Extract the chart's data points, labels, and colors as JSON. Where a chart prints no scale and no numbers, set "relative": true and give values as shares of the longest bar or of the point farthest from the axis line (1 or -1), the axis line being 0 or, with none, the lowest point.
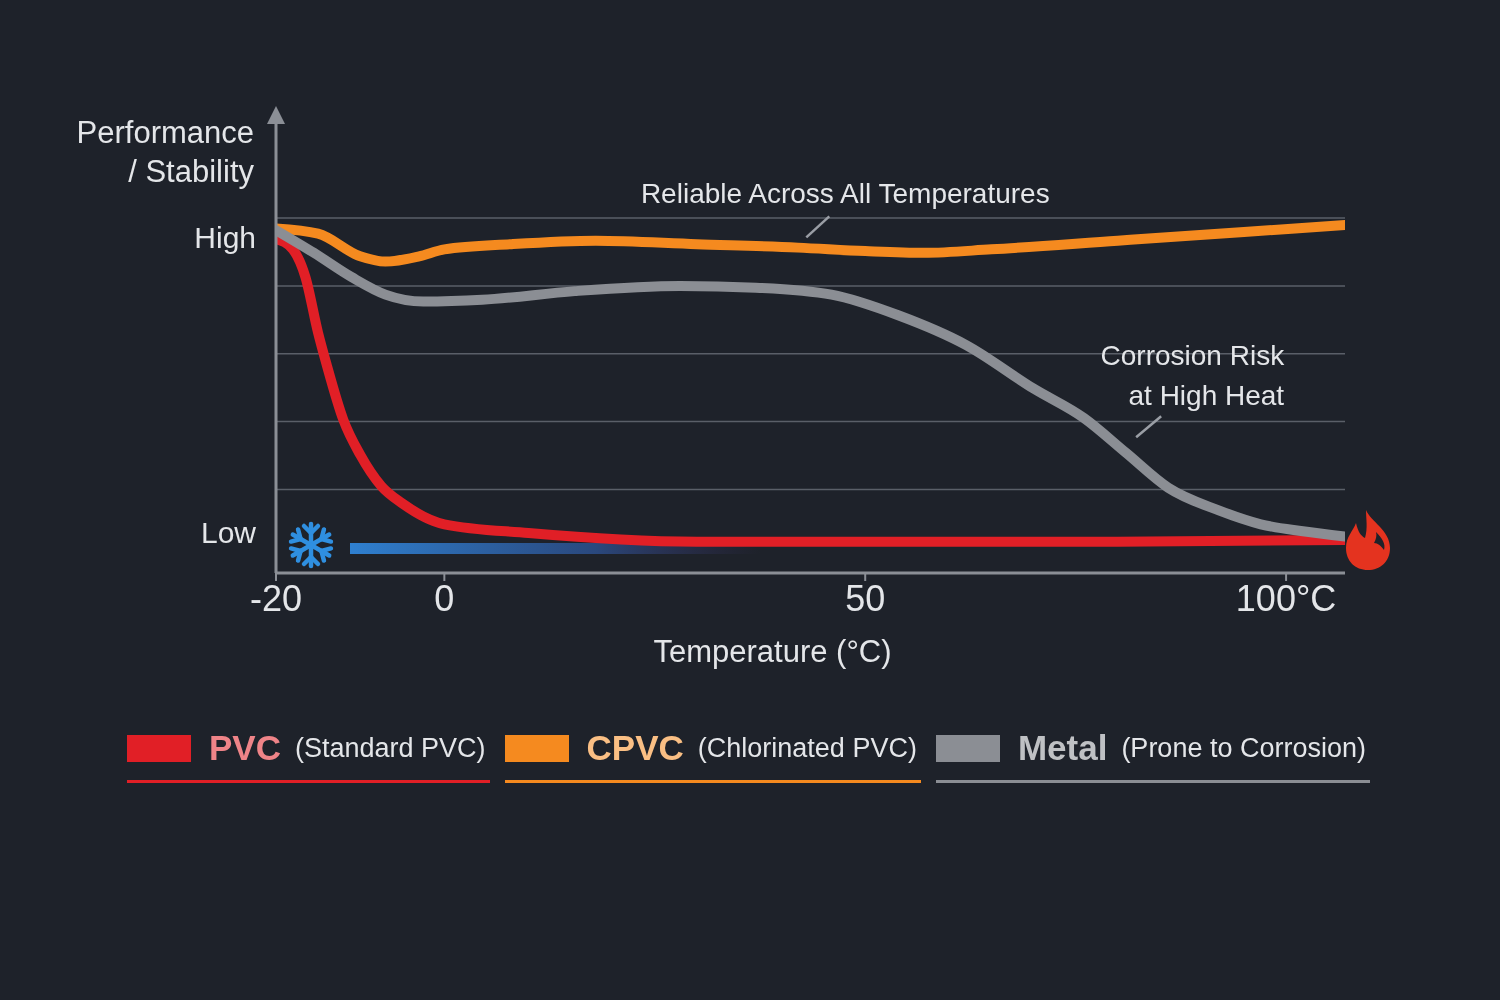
{
  "chart_data": {
    "type": "line",
    "xlabel": "Temperature (°C)",
    "ylabel": "Performance\n/ Stability",
    "relative": true,
    "xlim": [
      -20,
      107
    ],
    "xticks": [
      -20,
      0,
      50,
      {
        "value": 100,
        "label": "100°C"
      }
    ],
    "series": [
      {
        "name": "PVC (Standard PVC)",
        "color": "#e11f26",
        "x": [
          -20,
          -18,
          -16.5,
          -15,
          -14,
          -12,
          -10,
          -7.5,
          -5,
          0,
          10,
          30,
          50,
          80,
          107
        ],
        "values": [
          0.96,
          0.93,
          0.85,
          0.69,
          0.6,
          0.44,
          0.34,
          0.25,
          0.2,
          0.14,
          0.115,
          0.09,
          0.09,
          0.09,
          0.095
        ]
      },
      {
        "name": "CPVC (Chlorinated PVC)",
        "color": "#f58a1f",
        "x": [
          -20,
          -15,
          -10,
          -7,
          -3,
          0,
          8,
          18,
          30,
          42,
          50,
          57,
          65,
          80,
          95,
          107
        ],
        "values": [
          0.99,
          0.975,
          0.91,
          0.895,
          0.91,
          0.93,
          0.945,
          0.955,
          0.945,
          0.935,
          0.925,
          0.92,
          0.93,
          0.955,
          0.98,
          1.0
        ]
      },
      {
        "name": "Metal (Prone to Corrosion)",
        "color": "#8b8e94",
        "x": [
          -20,
          -15.5,
          -11,
          -7,
          -2.5,
          4.5,
          15.5,
          28,
          37,
          46,
          54,
          62,
          70,
          76,
          81,
          86,
          92,
          97,
          102,
          107
        ],
        "values": [
          0.985,
          0.92,
          0.85,
          0.8,
          0.78,
          0.785,
          0.81,
          0.825,
          0.82,
          0.8,
          0.74,
          0.655,
          0.53,
          0.445,
          0.345,
          0.245,
          0.18,
          0.14,
          0.12,
          0.105
        ]
      }
    ],
    "annotations": [
      "High",
      "Low",
      {
        "text": "Reliable Across All Temperatures",
        "x": 43,
        "y": 0.93
      },
      {
        "text": "Corrosion Risk\nat High Heat",
        "x": 81,
        "y": 0.35
      }
    ],
    "grid": "y",
    "legend": "bottom"
  }
}
